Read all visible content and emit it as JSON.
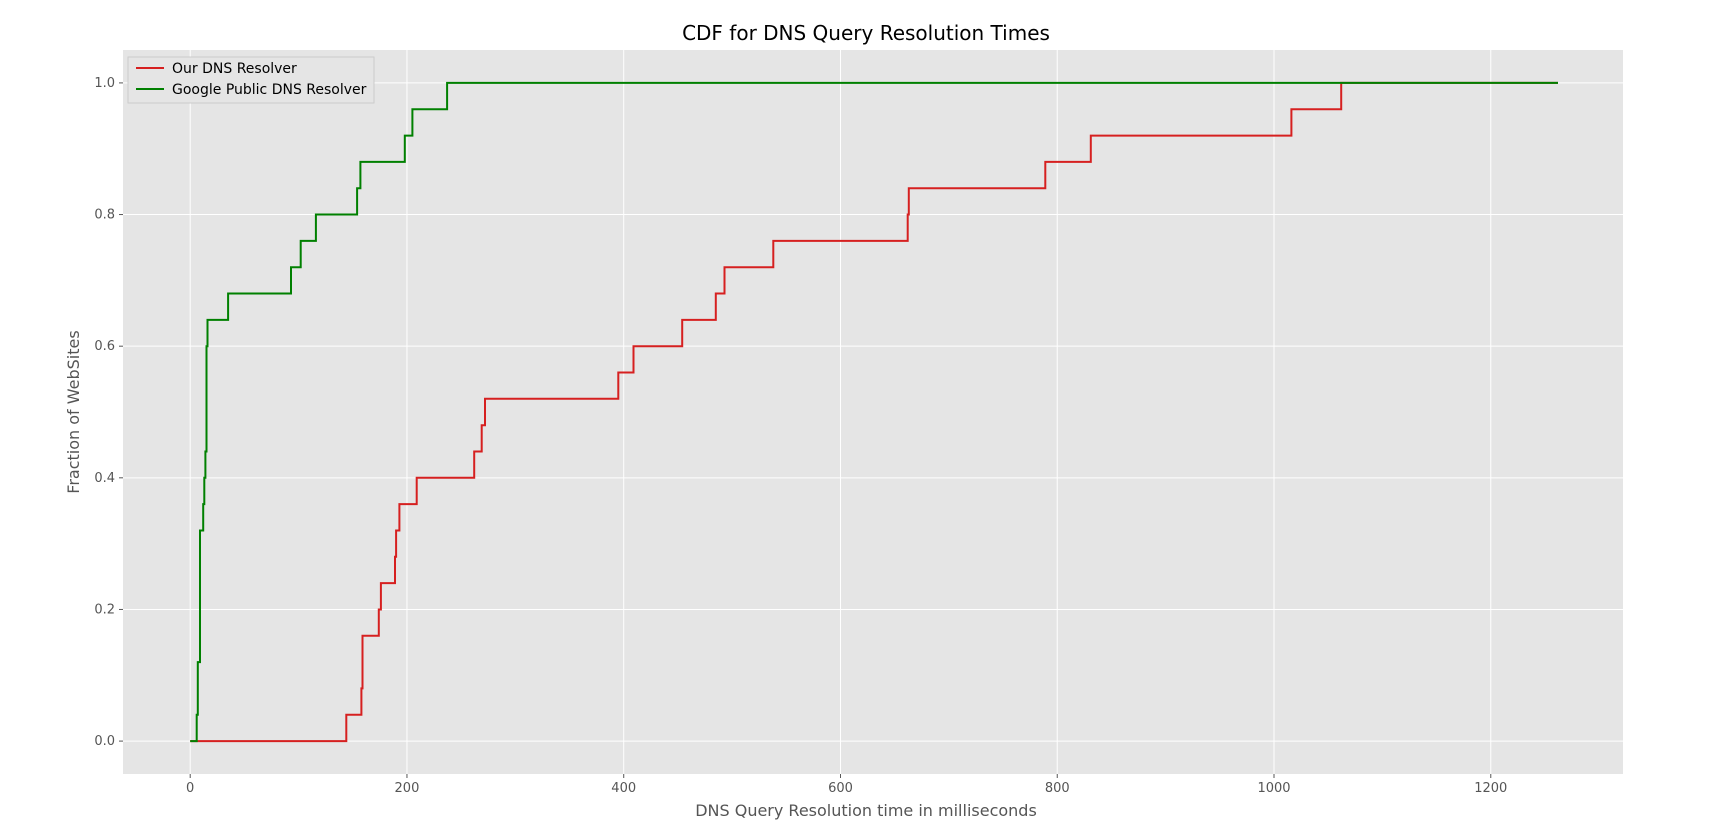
{
  "chart_data": {
    "type": "line",
    "step": true,
    "title": "CDF for DNS Query Resolution Times",
    "xlabel": "DNS Query Resolution time in milliseconds",
    "ylabel": "Fraction of WebSites",
    "xlim": [
      -62,
      1322
    ],
    "ylim": [
      -0.05,
      1.05
    ],
    "xticks": [
      0,
      200,
      400,
      600,
      800,
      1000,
      1200
    ],
    "yticks": [
      0.0,
      0.2,
      0.4,
      0.6,
      0.8,
      1.0
    ],
    "xtick_labels": [
      "0",
      "200",
      "400",
      "600",
      "800",
      "1000",
      "1200"
    ],
    "ytick_labels": [
      "0.0",
      "0.2",
      "0.4",
      "0.6",
      "0.8",
      "1.0"
    ],
    "grid": true,
    "background": "#e5e5e5",
    "legend_position": "top-left",
    "series": [
      {
        "name": "Our DNS Resolver",
        "color": "#d62020",
        "points": [
          [
            0,
            0.0
          ],
          [
            144,
            0.0
          ],
          [
            144,
            0.04
          ],
          [
            158,
            0.04
          ],
          [
            158,
            0.08
          ],
          [
            159,
            0.08
          ],
          [
            159,
            0.16
          ],
          [
            174,
            0.16
          ],
          [
            174,
            0.2
          ],
          [
            176,
            0.2
          ],
          [
            176,
            0.24
          ],
          [
            189,
            0.24
          ],
          [
            189,
            0.28
          ],
          [
            190,
            0.28
          ],
          [
            190,
            0.32
          ],
          [
            193,
            0.32
          ],
          [
            193,
            0.36
          ],
          [
            209,
            0.36
          ],
          [
            209,
            0.4
          ],
          [
            262,
            0.4
          ],
          [
            262,
            0.44
          ],
          [
            269,
            0.44
          ],
          [
            269,
            0.48
          ],
          [
            272,
            0.48
          ],
          [
            272,
            0.52
          ],
          [
            395,
            0.52
          ],
          [
            395,
            0.56
          ],
          [
            409,
            0.56
          ],
          [
            409,
            0.6
          ],
          [
            454,
            0.6
          ],
          [
            454,
            0.64
          ],
          [
            485,
            0.64
          ],
          [
            485,
            0.68
          ],
          [
            493,
            0.68
          ],
          [
            493,
            0.72
          ],
          [
            538,
            0.72
          ],
          [
            538,
            0.76
          ],
          [
            662,
            0.76
          ],
          [
            662,
            0.8
          ],
          [
            663,
            0.8
          ],
          [
            663,
            0.84
          ],
          [
            789,
            0.84
          ],
          [
            789,
            0.88
          ],
          [
            831,
            0.88
          ],
          [
            831,
            0.92
          ],
          [
            1016,
            0.92
          ],
          [
            1016,
            0.96
          ],
          [
            1062,
            0.96
          ],
          [
            1062,
            1.0
          ],
          [
            1262,
            1.0
          ]
        ]
      },
      {
        "name": "Google Public DNS Resolver",
        "color": "#008000",
        "points": [
          [
            0,
            0.0
          ],
          [
            6,
            0.0
          ],
          [
            6,
            0.04
          ],
          [
            7,
            0.04
          ],
          [
            7,
            0.12
          ],
          [
            9,
            0.12
          ],
          [
            9,
            0.32
          ],
          [
            12,
            0.32
          ],
          [
            12,
            0.36
          ],
          [
            13,
            0.36
          ],
          [
            13,
            0.4
          ],
          [
            14,
            0.4
          ],
          [
            14,
            0.44
          ],
          [
            15,
            0.44
          ],
          [
            15,
            0.6
          ],
          [
            16,
            0.6
          ],
          [
            16,
            0.64
          ],
          [
            35,
            0.64
          ],
          [
            35,
            0.68
          ],
          [
            93,
            0.68
          ],
          [
            93,
            0.72
          ],
          [
            102,
            0.72
          ],
          [
            102,
            0.76
          ],
          [
            116,
            0.76
          ],
          [
            116,
            0.8
          ],
          [
            154,
            0.8
          ],
          [
            154,
            0.84
          ],
          [
            157,
            0.84
          ],
          [
            157,
            0.88
          ],
          [
            198,
            0.88
          ],
          [
            198,
            0.92
          ],
          [
            205,
            0.92
          ],
          [
            205,
            0.96
          ],
          [
            237,
            0.96
          ],
          [
            237,
            1.0
          ],
          [
            1262,
            1.0
          ]
        ]
      }
    ]
  }
}
